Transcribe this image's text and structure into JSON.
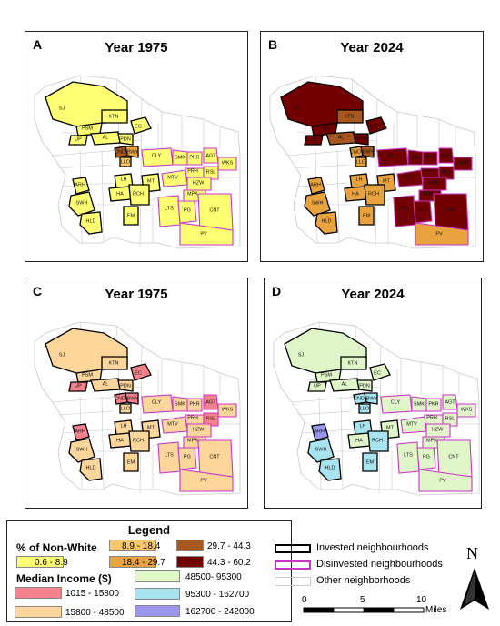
{
  "panels": [
    {
      "label": "A",
      "title": "Year 1975"
    },
    {
      "label": "B",
      "title": "Year 2024"
    },
    {
      "label": "C",
      "title": "Year 1975"
    },
    {
      "label": "D",
      "title": "Year 2024"
    }
  ],
  "neighbourhood_labels": {
    "SJ": "SJ",
    "PSM": "PSM",
    "KTN": "KTN",
    "EC": "EC",
    "UP": "UP",
    "AL": "AL",
    "PDN": "PDN",
    "CLY": "CLY",
    "SMK": "SMK",
    "PKR": "PKR",
    "AGT": "AGT",
    "WKS": "WKS",
    "RSL": "RSL",
    "PRH": "PRH",
    "HZW": "HZW",
    "MTV": "MTV",
    "MT": "MT",
    "HA": "HA",
    "RCH": "RCH",
    "LTS": "LTS",
    "PG": "PG",
    "CNT": "CNT",
    "PV": "PV",
    "EM": "EM",
    "SWH": "SWH",
    "HLD": "HLD",
    "ARH": "ARH",
    "LH": "LH",
    "CND": "CND",
    "BWY": "BWY",
    "LLO": "LLO",
    "MPK": "MPK"
  },
  "legend": {
    "title": "Legend",
    "nonwhite_heading": "% of Non-White",
    "nonwhite_classes": [
      {
        "label": "0.6 - 8.9",
        "color": "#ffff73"
      },
      {
        "label": "8.9 - 18.4",
        "color": "#f5c96a"
      },
      {
        "label": "18.4 - 29.7",
        "color": "#e8a33e"
      },
      {
        "label": "29.7 - 44.3",
        "color": "#a8571e"
      },
      {
        "label": "44.3 - 60.2",
        "color": "#730000"
      }
    ],
    "income_heading": "Median Income ($)",
    "income_classes": [
      {
        "label": "1015 - 15800",
        "color": "#f4828c"
      },
      {
        "label": "15800 - 48500",
        "color": "#fcd69a"
      },
      {
        "label": "48500- 95300",
        "color": "#e0f5c8"
      },
      {
        "label": "95300 - 162700",
        "color": "#a8e4f0"
      },
      {
        "label": "162700 - 242000",
        "color": "#9a96ee"
      }
    ],
    "boundaries": [
      {
        "label": "Invested neighbourhoods",
        "color": "#000000"
      },
      {
        "label": "Disinvested neighbourhoods",
        "color": "#cc33cc"
      },
      {
        "label": "Other neighborhoods",
        "color": "#cccccc"
      }
    ]
  },
  "scale": {
    "ticks": [
      "0",
      "5",
      "10"
    ],
    "unit": "Miles"
  },
  "north_label": "N"
}
